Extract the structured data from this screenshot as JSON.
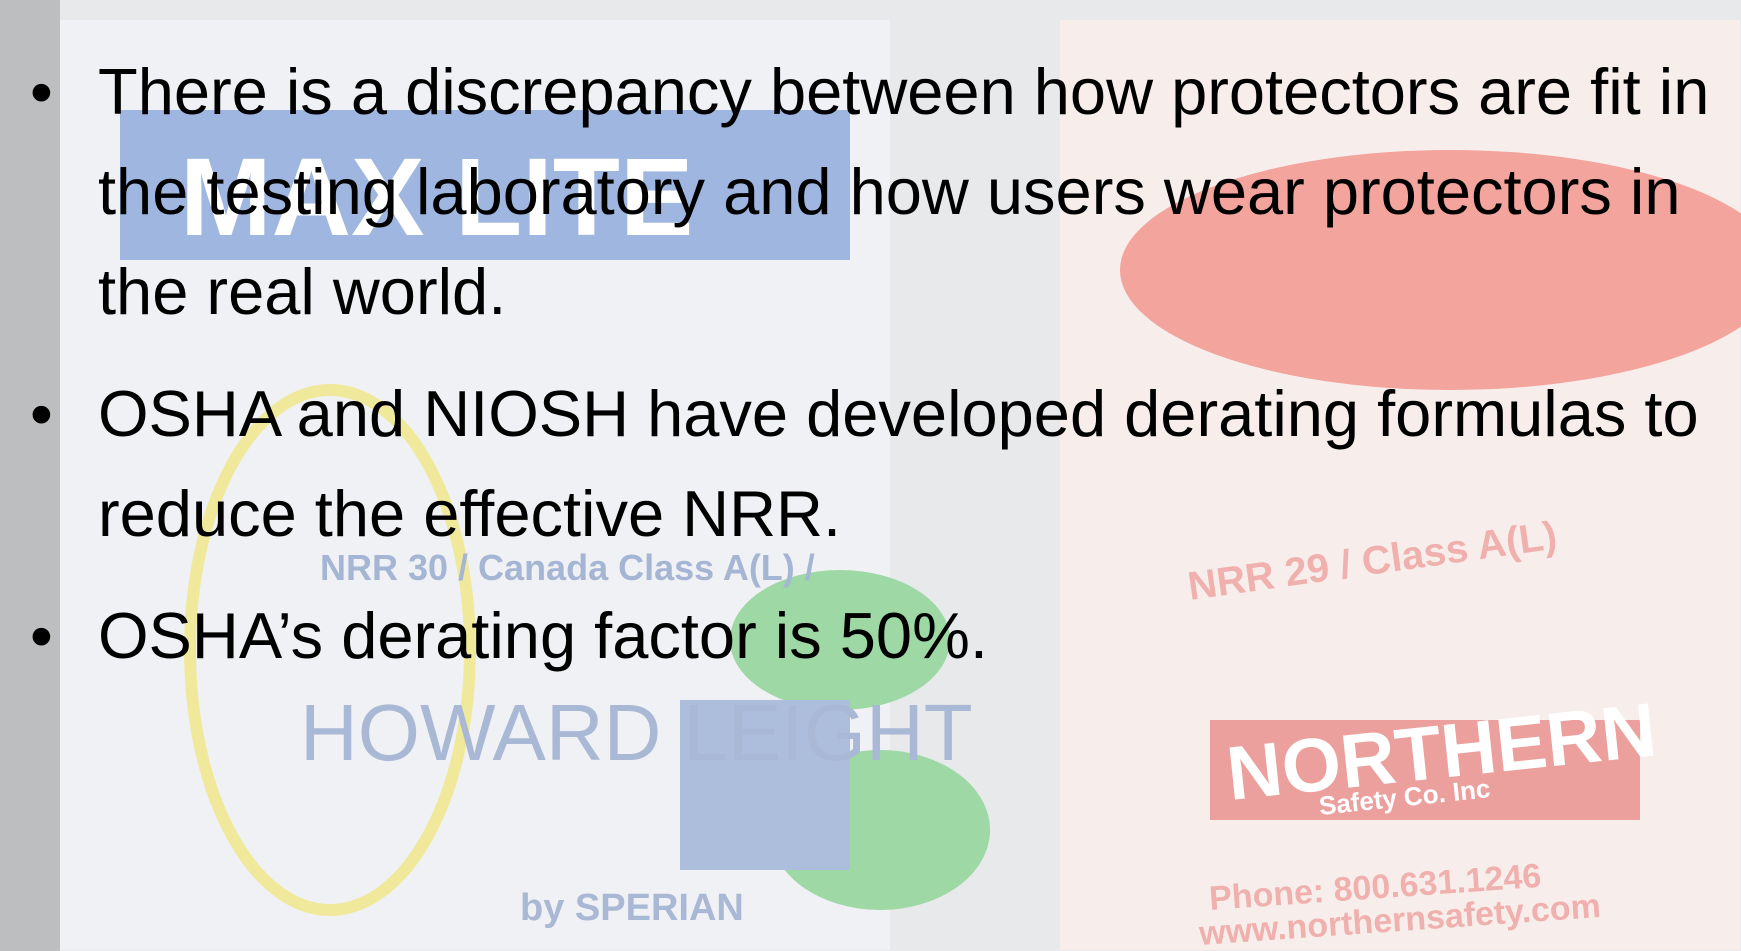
{
  "slide": {
    "bullets": [
      "There is a discrepancy between how protectors are fit in the testing laboratory and how users wear protectors in the real world.",
      "OSHA and NIOSH have developed derating formulas to reduce the effective NRR.",
      "OSHA’s derating factor is 50%."
    ]
  },
  "background": {
    "labels": [
      "MAX LITE",
      "NRR 30 / Canada Class A(L) /",
      "HOWARD LEIGHT",
      "by SPERIAN",
      "NRR 29 / Class A(L)",
      "NORTHERN",
      "Safety Co. Inc",
      "Phone: 800.631.1246",
      "www.northernsafety.com"
    ]
  }
}
